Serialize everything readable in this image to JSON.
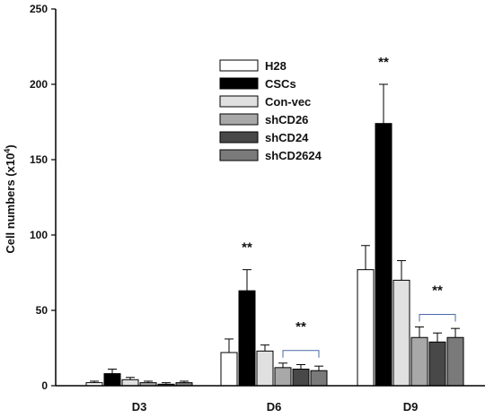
{
  "chart_data": {
    "type": "bar",
    "title": "",
    "xlabel": "",
    "ylabel": "Cell numbers (x10",
    "ylabel_sup": "4",
    "ylabel_close": ")",
    "ylim": [
      0,
      250
    ],
    "yticks": [
      0,
      50,
      100,
      150,
      200,
      250
    ],
    "categories": [
      "D3",
      "D6",
      "D9"
    ],
    "legend_position": "top-center",
    "grid": false,
    "series": [
      {
        "name": "H28",
        "color": "#ffffff",
        "values": [
          2,
          22,
          77
        ],
        "errors": [
          1,
          9,
          16
        ]
      },
      {
        "name": "CSCs",
        "color": "#000000",
        "values": [
          8,
          63,
          174
        ],
        "errors": [
          3,
          14,
          26
        ]
      },
      {
        "name": "Con-vec",
        "color": "#e0e0e0",
        "values": [
          4,
          23,
          70
        ],
        "errors": [
          1.5,
          4,
          13
        ]
      },
      {
        "name": "shCD26",
        "color": "#a8a8a8",
        "values": [
          2,
          12,
          32
        ],
        "errors": [
          1,
          3,
          7
        ]
      },
      {
        "name": "shCD24",
        "color": "#484848",
        "values": [
          1,
          11,
          29
        ],
        "errors": [
          1,
          3,
          6
        ]
      },
      {
        "name": "shCD2624",
        "color": "#7a7a7a",
        "values": [
          2,
          10,
          32
        ],
        "errors": [
          1,
          3,
          6
        ]
      }
    ],
    "annotations": [
      {
        "text": "**",
        "category": "D6",
        "target": "CSCs"
      },
      {
        "text": "**",
        "category": "D6",
        "target": "shCD26-shCD2624"
      },
      {
        "text": "**",
        "category": "D9",
        "target": "CSCs"
      },
      {
        "text": "**",
        "category": "D9",
        "target": "shCD26-shCD2624"
      }
    ]
  }
}
